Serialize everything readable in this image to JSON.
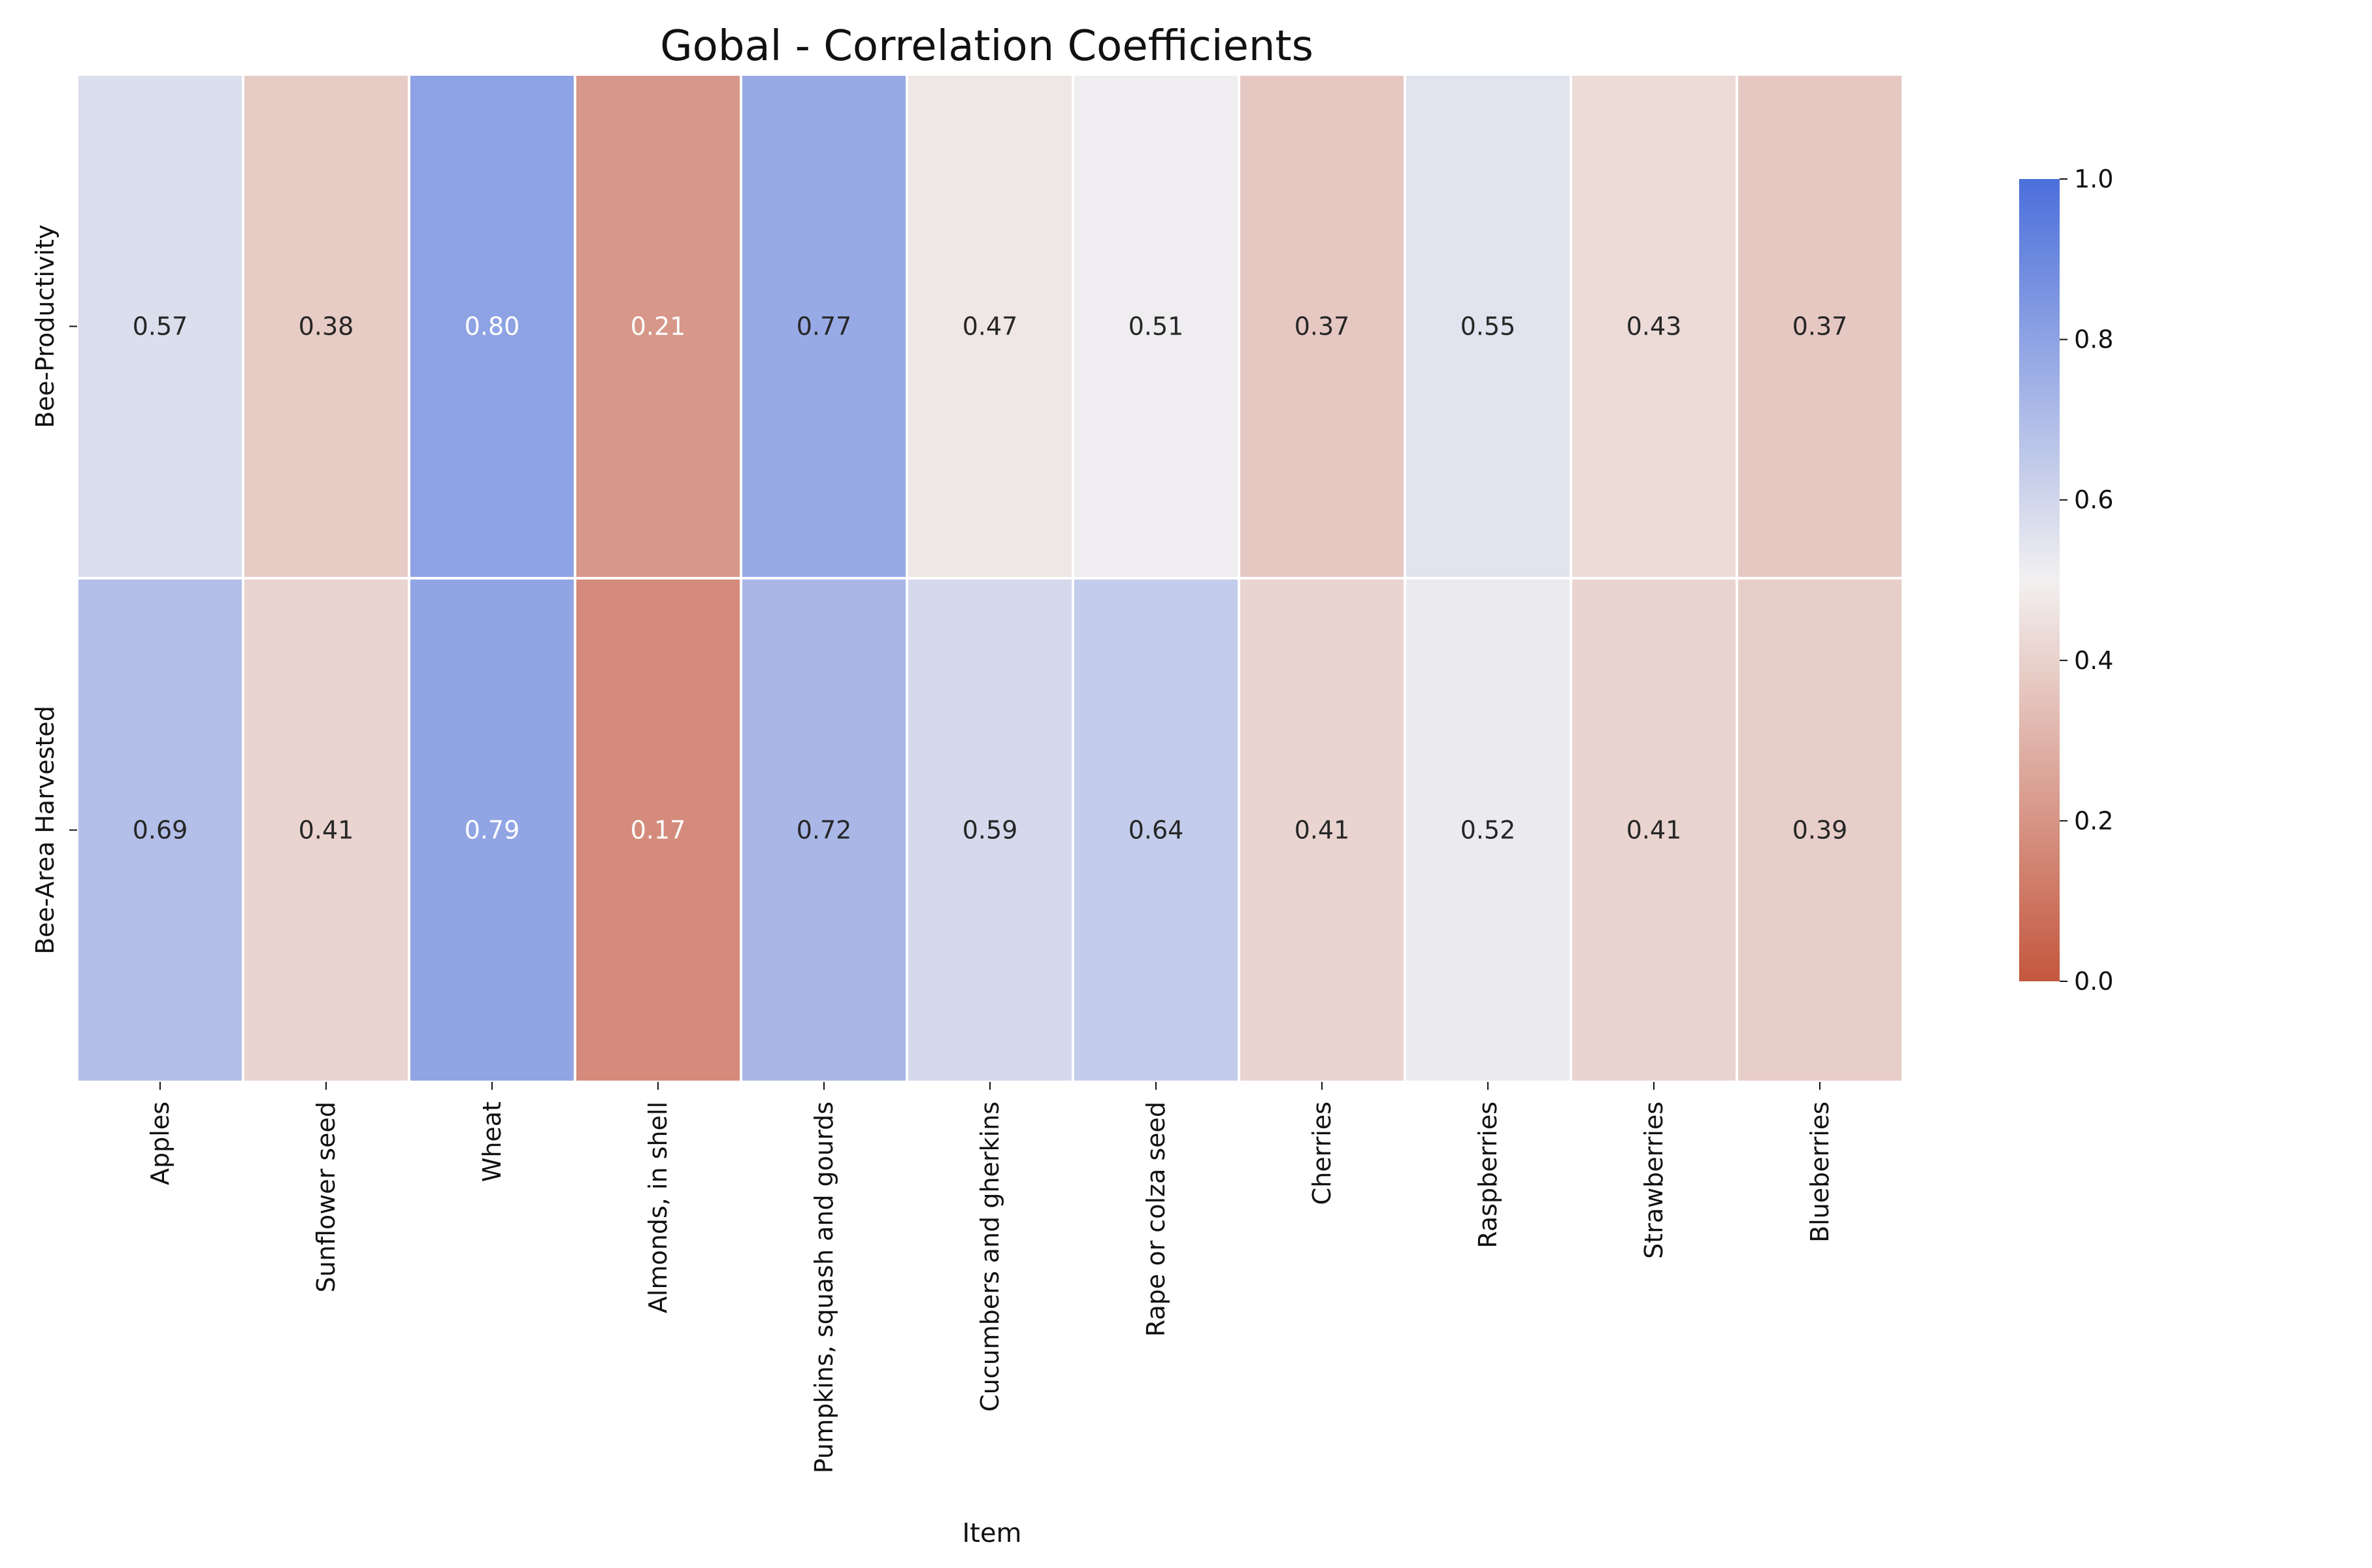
{
  "chart_data": {
    "type": "heatmap",
    "title": "Gobal - Correlation Coefficients",
    "xlabel": "Item",
    "ylabel": "",
    "x_categories": [
      "Apples",
      "Sunflower seed",
      "Wheat",
      "Almonds, in shell",
      "Pumpkins, squash and gourds",
      "Cucumbers and gherkins",
      "Rape or colza seed",
      "Cherries",
      "Raspberries",
      "Strawberries",
      "Blueberries"
    ],
    "y_categories": [
      "Bee-Productivity",
      "Bee-Area Harvested"
    ],
    "values": [
      [
        0.57,
        0.38,
        0.8,
        0.21,
        0.77,
        0.47,
        0.51,
        0.37,
        0.55,
        0.43,
        0.37
      ],
      [
        0.69,
        0.41,
        0.79,
        0.17,
        0.72,
        0.59,
        0.64,
        0.41,
        0.52,
        0.41,
        0.39
      ]
    ],
    "value_labels": [
      [
        "0.57",
        "0.38",
        "0.80",
        "0.21",
        "0.77",
        "0.47",
        "0.51",
        "0.37",
        "0.55",
        "0.43",
        "0.37"
      ],
      [
        "0.69",
        "0.41",
        "0.79",
        "0.17",
        "0.72",
        "0.59",
        "0.64",
        "0.41",
        "0.52",
        "0.41",
        "0.39"
      ]
    ],
    "vmin": 0.0,
    "vmax": 1.0,
    "colormap": {
      "low": "#c4573e",
      "mid": "#f2f0f0",
      "high": "#4b6fdb"
    },
    "colorbar": {
      "ticks": [
        0.0,
        0.2,
        0.4,
        0.6,
        0.8,
        1.0
      ],
      "tick_labels": [
        "0.0",
        "0.2",
        "0.4",
        "0.6",
        "0.8",
        "1.0"
      ],
      "placement": "right"
    },
    "grid": false,
    "legend": "none"
  }
}
